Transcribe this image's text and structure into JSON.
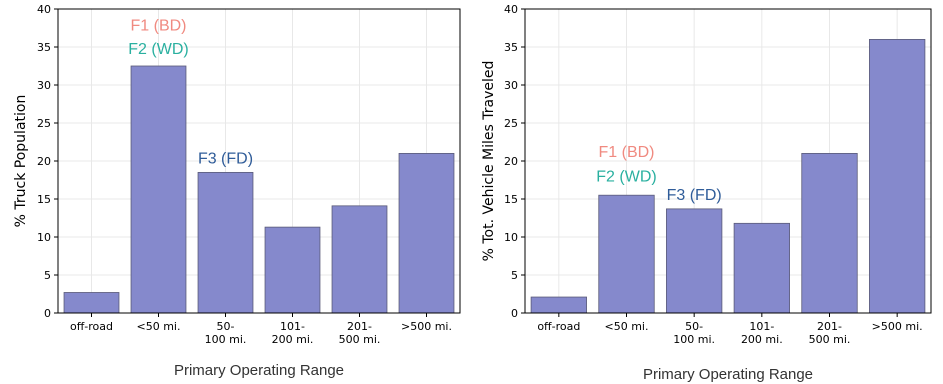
{
  "chart_data": [
    {
      "type": "bar",
      "categories": [
        "off-road",
        "<50 mi.",
        "50-\n100 mi.",
        "101-\n200 mi.",
        "201-\n500 mi.",
        ">500 mi."
      ],
      "values": [
        2.7,
        32.5,
        18.5,
        11.3,
        14.1,
        21.0
      ],
      "xlabel": "Primary Operating Range",
      "ylabel": "% Truck Population",
      "ylim": [
        0,
        40
      ],
      "yticks": [
        0,
        5,
        10,
        15,
        20,
        25,
        30,
        35,
        40
      ],
      "grid": true,
      "bar_color": "#8589cc",
      "annotations": [
        {
          "text": "F1 (BD)",
          "color": "#f08a80",
          "category": "<50 mi.",
          "y": 37.2
        },
        {
          "text": "F2 (WD)",
          "color": "#2ab0a0",
          "category": "<50 mi.",
          "y": 34.1
        },
        {
          "text": "F3 (FD)",
          "color": "#2f5c99",
          "category": "50-\n100 mi.",
          "y": 19.7
        }
      ]
    },
    {
      "type": "bar",
      "categories": [
        "off-road",
        "<50 mi.",
        "50-\n100 mi.",
        "101-\n200 mi.",
        "201-\n500 mi.",
        ">500 mi."
      ],
      "values": [
        2.1,
        15.5,
        13.7,
        11.8,
        21.0,
        36.0
      ],
      "xlabel": "Primary Operating Range",
      "ylabel": "% Tot. Vehicle Miles Traveled",
      "ylim": [
        0,
        40
      ],
      "yticks": [
        0,
        5,
        10,
        15,
        20,
        25,
        30,
        35,
        40
      ],
      "grid": true,
      "bar_color": "#8589cc",
      "annotations": [
        {
          "text": "F1 (BD)",
          "color": "#f08a80",
          "category": "<50 mi.",
          "y": 20.5
        },
        {
          "text": "F2 (WD)",
          "color": "#2ab0a0",
          "category": "<50 mi.",
          "y": 17.3
        },
        {
          "text": "F3 (FD)",
          "color": "#2f5c99",
          "category": "50-\n100 mi.",
          "y": 14.9
        }
      ]
    }
  ]
}
